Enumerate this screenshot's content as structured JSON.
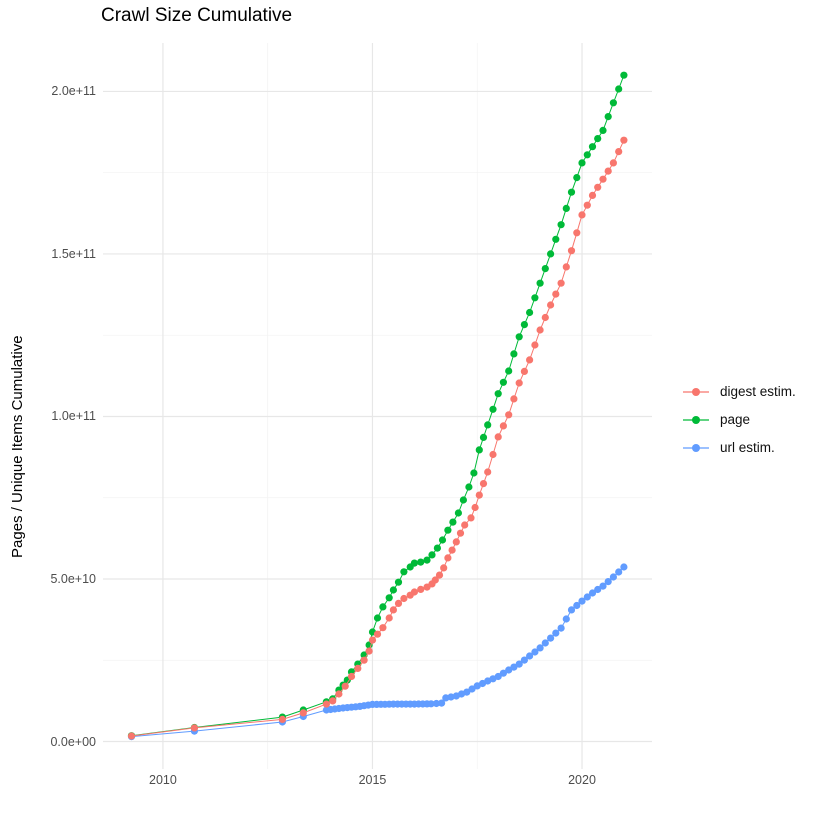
{
  "figure": {
    "title": "Crawl Size Cumulative",
    "ylabel": "Pages / Unique Items Cumulative"
  },
  "chart_data": {
    "type": "scatter",
    "title": "Crawl Size Cumulative",
    "xlabel": "",
    "ylabel": "Pages / Unique Items Cumulative",
    "grid": true,
    "legend_position": "right",
    "xlim": [
      2008.57,
      2021.67
    ],
    "ylim": [
      -8460000000.0,
      214900000000.0
    ],
    "x_ticks": {
      "major": [
        2010,
        2015,
        2020
      ],
      "minor": [
        2012.5,
        2017.5
      ],
      "labels": [
        "2010",
        "2015",
        "2020"
      ]
    },
    "y_ticks": {
      "major": [
        0,
        50000000000.0,
        100000000000.0,
        150000000000.0,
        200000000000.0
      ],
      "minor": [
        25000000000.0,
        75000000000.0,
        125000000000.0,
        175000000000.0
      ],
      "labels": [
        "0.0e+00",
        "5.0e+10",
        "1.0e+11",
        "1.5e+11",
        "2.0e+11"
      ]
    },
    "series": [
      {
        "name": "digest estim.",
        "color": "#F8766D",
        "points": [
          [
            2009.25,
            1700000000.0
          ],
          [
            2010.75,
            4200000000.0
          ],
          [
            2012.85,
            6800000000.0
          ],
          [
            2013.35,
            8800000000.0
          ],
          [
            2013.9,
            11500000000.0
          ],
          [
            2014.05,
            12500000000.0
          ],
          [
            2014.2,
            14600000000.0
          ],
          [
            2014.35,
            17000000000.0
          ],
          [
            2014.5,
            20000000000.0
          ],
          [
            2014.65,
            22500000000.0
          ],
          [
            2014.8,
            25000000000.0
          ],
          [
            2014.92,
            27800000000.0
          ],
          [
            2015.0,
            31200000000.0
          ],
          [
            2015.12,
            33000000000.0
          ],
          [
            2015.25,
            35000000000.0
          ],
          [
            2015.4,
            38000000000.0
          ],
          [
            2015.5,
            40500000000.0
          ],
          [
            2015.62,
            42500000000.0
          ],
          [
            2015.75,
            44000000000.0
          ],
          [
            2015.9,
            45000000000.0
          ],
          [
            2016.0,
            46000000000.0
          ],
          [
            2016.15,
            46800000000.0
          ],
          [
            2016.3,
            47500000000.0
          ],
          [
            2016.42,
            48500000000.0
          ],
          [
            2016.5,
            49700000000.0
          ],
          [
            2016.6,
            51200000000.0
          ],
          [
            2016.7,
            53400000000.0
          ],
          [
            2016.8,
            56500000000.0
          ],
          [
            2016.9,
            58900000000.0
          ],
          [
            2017.0,
            61400000000.0
          ],
          [
            2017.1,
            64100000000.0
          ],
          [
            2017.2,
            66600000000.0
          ],
          [
            2017.35,
            68800000000.0
          ],
          [
            2017.45,
            72000000000.0
          ],
          [
            2017.55,
            75800000000.0
          ],
          [
            2017.75,
            82900000000.0
          ],
          [
            2018.0,
            93700000000.0
          ],
          [
            2018.25,
            100500000000.0
          ],
          [
            2018.5,
            110300000000.0
          ],
          [
            2018.75,
            117400000000.0
          ],
          [
            2019.0,
            126600000000.0
          ],
          [
            2019.25,
            134300000000.0
          ],
          [
            2019.5,
            141000000000.0
          ],
          [
            2019.75,
            151000000000.0
          ],
          [
            2020.0,
            162000000000.0
          ],
          [
            2020.25,
            168000000000.0
          ],
          [
            2020.5,
            173000000000.0
          ],
          [
            2020.75,
            178000000000.0
          ],
          [
            2021.0,
            185000000000.0
          ]
        ]
      },
      {
        "name": "page",
        "color": "#00BA38",
        "points": [
          [
            2009.25,
            1800000000.0
          ],
          [
            2010.75,
            4300000000.0
          ],
          [
            2012.85,
            7500000000.0
          ],
          [
            2013.35,
            9700000000.0
          ],
          [
            2013.9,
            12200000000.0
          ],
          [
            2014.05,
            13100000000.0
          ],
          [
            2014.2,
            15800000000.0
          ],
          [
            2014.4,
            18900000000.0
          ],
          [
            2014.5,
            21400000000.0
          ],
          [
            2014.65,
            23800000000.0
          ],
          [
            2014.8,
            26600000000.0
          ],
          [
            2014.92,
            29700000000.0
          ],
          [
            2015.0,
            33700000000.0
          ],
          [
            2015.12,
            38000000000.0
          ],
          [
            2015.25,
            41400000000.0
          ],
          [
            2015.4,
            44200000000.0
          ],
          [
            2015.5,
            46600000000.0
          ],
          [
            2015.62,
            49000000000.0
          ],
          [
            2015.75,
            52200000000.0
          ],
          [
            2015.9,
            53700000000.0
          ],
          [
            2016.0,
            54900000000.0
          ],
          [
            2016.15,
            55200000000.0
          ],
          [
            2016.3,
            55800000000.0
          ],
          [
            2016.42,
            57400000000.0
          ],
          [
            2016.55,
            59500000000.0
          ],
          [
            2016.67,
            62000000000.0
          ],
          [
            2016.8,
            65000000000.0
          ],
          [
            2016.92,
            67500000000.0
          ],
          [
            2017.05,
            70300000000.0
          ],
          [
            2017.17,
            74300000000.0
          ],
          [
            2017.3,
            78300000000.0
          ],
          [
            2017.42,
            82600000000.0
          ],
          [
            2017.55,
            89700000000.0
          ],
          [
            2017.75,
            97400000000.0
          ],
          [
            2018.0,
            107000000000.0
          ],
          [
            2018.25,
            114000000000.0
          ],
          [
            2018.5,
            124500000000.0
          ],
          [
            2018.75,
            132000000000.0
          ],
          [
            2019.0,
            141000000000.0
          ],
          [
            2019.25,
            150000000000.0
          ],
          [
            2019.5,
            159000000000.0
          ],
          [
            2019.75,
            169000000000.0
          ],
          [
            2020.0,
            178000000000.0
          ],
          [
            2020.25,
            183000000000.0
          ],
          [
            2020.5,
            188000000000.0
          ],
          [
            2020.75,
            196500000000.0
          ],
          [
            2021.0,
            205000000000.0
          ]
        ]
      },
      {
        "name": "url estim.",
        "color": "#619CFF",
        "points": [
          [
            2009.25,
            1500000000.0
          ],
          [
            2010.75,
            3200000000.0
          ],
          [
            2012.85,
            6000000000.0
          ],
          [
            2013.35,
            7700000000.0
          ],
          [
            2013.9,
            9700000000.0
          ],
          [
            2014.3,
            10300000000.0
          ],
          [
            2014.7,
            10800000000.0
          ],
          [
            2015.0,
            11400000000.0
          ],
          [
            2015.5,
            11500000000.0
          ],
          [
            2016.0,
            11500000000.0
          ],
          [
            2016.4,
            11600000000.0
          ],
          [
            2016.65,
            11800000000.0
          ],
          [
            2016.75,
            13400000000.0
          ],
          [
            2017.0,
            14000000000.0
          ],
          [
            2017.25,
            15200000000.0
          ],
          [
            2017.5,
            17100000000.0
          ],
          [
            2017.75,
            18600000000.0
          ],
          [
            2018.0,
            20000000000.0
          ],
          [
            2018.25,
            22000000000.0
          ],
          [
            2018.5,
            23800000000.0
          ],
          [
            2018.75,
            26300000000.0
          ],
          [
            2019.0,
            28800000000.0
          ],
          [
            2019.25,
            31800000000.0
          ],
          [
            2019.5,
            34900000000.0
          ],
          [
            2019.75,
            40500000000.0
          ],
          [
            2020.0,
            43200000000.0
          ],
          [
            2020.25,
            45700000000.0
          ],
          [
            2020.5,
            47800000000.0
          ],
          [
            2020.75,
            50600000000.0
          ],
          [
            2021.0,
            53700000000.0
          ]
        ]
      }
    ]
  }
}
